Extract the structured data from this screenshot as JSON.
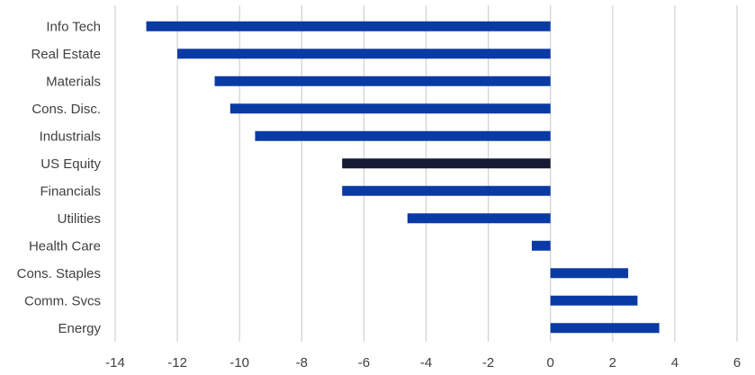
{
  "chart_data": {
    "type": "bar",
    "orientation": "horizontal",
    "categories": [
      "Info Tech",
      "Real Estate",
      "Materials",
      "Cons. Disc.",
      "Industrials",
      "US Equity",
      "Financials",
      "Utilities",
      "Health Care",
      "Cons. Staples",
      "Comm. Svcs",
      "Energy"
    ],
    "values": [
      -13.0,
      -12.0,
      -10.8,
      -10.3,
      -9.5,
      -6.7,
      -6.7,
      -4.6,
      -0.6,
      2.5,
      2.8,
      3.5
    ],
    "highlight": "US Equity",
    "colors": {
      "bar": "#0a3aa3",
      "highlight": "#161a35",
      "grid": "#d0d0d0",
      "text": "#404040"
    },
    "xlim": [
      -14,
      6
    ],
    "xticks": [
      "-14",
      "-12",
      "-10",
      "-8",
      "-6",
      "-4",
      "-2",
      "0",
      "2",
      "4",
      "6"
    ],
    "grid": "vertical",
    "title": "",
    "xlabel": "",
    "ylabel": ""
  }
}
